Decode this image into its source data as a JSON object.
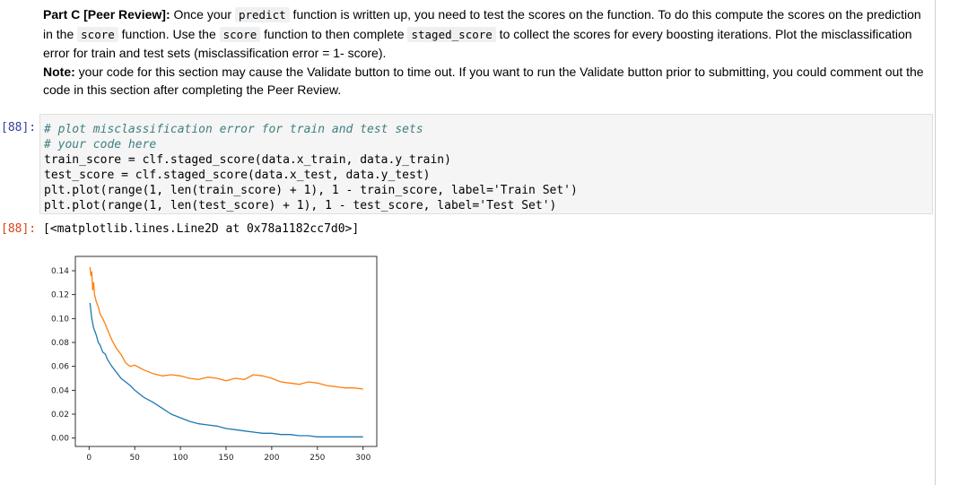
{
  "markdown": {
    "heading": "Part C [Peer Review]:",
    "p1_a": " Once your ",
    "p1_code1": "predict",
    "p1_b": " function is written up, you need to test the scores on the function. To do this compute the scores on the prediction in the ",
    "p1_code2": "score",
    "p1_c": " function. Use the ",
    "p1_code3": "score",
    "p1_d": " function to then complete ",
    "p1_code4": "staged_score",
    "p1_e": " to collect the scores for every boosting iterations. Plot the misclassification error for train and test sets (misclassification error = 1- score).",
    "note_label": "Note:",
    "note_text": " your code for this section may cause the Validate button to time out. If you want to run the Validate button prior to submitting, you could comment out the code in this section after completing the Peer Review."
  },
  "cell": {
    "input_prompt": "[88]:",
    "output_prompt": "[88]:",
    "code_lines": [
      "# plot misclassification error for train and test sets",
      "# your code here",
      "train_score = clf.staged_score(data.x_train, data.y_train)",
      "test_score = clf.staged_score(data.x_test, data.y_test)",
      "plt.plot(range(1, len(train_score) + 1), 1 - train_score, label='Train Set')",
      "plt.plot(range(1, len(test_score) + 1), 1 - test_score, label='Test Set')"
    ],
    "output_text": "[<matplotlib.lines.Line2D at 0x78a1182cc7d0>]"
  },
  "chart_data": {
    "type": "line",
    "title": "",
    "xlabel": "",
    "ylabel": "",
    "xlim": [
      -15,
      315
    ],
    "ylim": [
      -0.007,
      0.152
    ],
    "xticks": [
      "0",
      "50",
      "100",
      "150",
      "200",
      "250",
      "300"
    ],
    "yticks": [
      "0.00",
      "0.02",
      "0.04",
      "0.06",
      "0.08",
      "0.10",
      "0.12",
      "0.14"
    ],
    "series": [
      {
        "color": "#1f77b4",
        "x": [
          1,
          3,
          5,
          8,
          10,
          12,
          15,
          18,
          20,
          25,
          30,
          35,
          40,
          45,
          50,
          55,
          60,
          70,
          80,
          90,
          100,
          110,
          120,
          130,
          140,
          150,
          160,
          170,
          180,
          190,
          200,
          210,
          220,
          230,
          240,
          250,
          260,
          270,
          280,
          290,
          300
        ],
        "values": [
          0.113,
          0.1,
          0.092,
          0.086,
          0.08,
          0.078,
          0.072,
          0.07,
          0.066,
          0.06,
          0.055,
          0.05,
          0.047,
          0.044,
          0.04,
          0.037,
          0.034,
          0.03,
          0.025,
          0.02,
          0.017,
          0.014,
          0.012,
          0.011,
          0.01,
          0.008,
          0.007,
          0.006,
          0.005,
          0.004,
          0.004,
          0.003,
          0.003,
          0.002,
          0.002,
          0.001,
          0.001,
          0.001,
          0.001,
          0.001,
          0.001
        ]
      },
      {
        "color": "#ff7f0e",
        "x": [
          1,
          2,
          3,
          4,
          5,
          6,
          8,
          10,
          12,
          15,
          18,
          20,
          25,
          30,
          35,
          40,
          45,
          50,
          55,
          60,
          70,
          80,
          90,
          100,
          110,
          120,
          130,
          140,
          150,
          160,
          170,
          180,
          190,
          200,
          210,
          220,
          230,
          240,
          250,
          260,
          270,
          280,
          290,
          300
        ],
        "values": [
          0.143,
          0.136,
          0.139,
          0.124,
          0.13,
          0.12,
          0.114,
          0.11,
          0.104,
          0.1,
          0.095,
          0.091,
          0.082,
          0.075,
          0.07,
          0.063,
          0.06,
          0.061,
          0.059,
          0.057,
          0.054,
          0.052,
          0.053,
          0.052,
          0.05,
          0.049,
          0.051,
          0.05,
          0.048,
          0.05,
          0.049,
          0.053,
          0.052,
          0.05,
          0.047,
          0.046,
          0.045,
          0.047,
          0.046,
          0.044,
          0.043,
          0.042,
          0.042,
          0.041
        ]
      }
    ]
  },
  "colors": {
    "input_prompt": "#303f9f",
    "output_prompt": "#d84315"
  }
}
